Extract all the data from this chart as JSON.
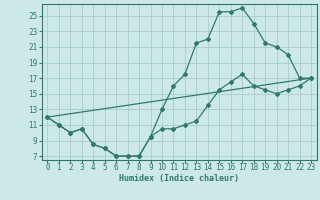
{
  "xlabel": "Humidex (Indice chaleur)",
  "bg_color": "#cce8e8",
  "grid_color": "#aacccc",
  "line_color": "#2e7b6e",
  "xlim": [
    -0.5,
    23.5
  ],
  "ylim": [
    6.5,
    26.5
  ],
  "xticks": [
    0,
    1,
    2,
    3,
    4,
    5,
    6,
    7,
    8,
    9,
    10,
    11,
    12,
    13,
    14,
    15,
    16,
    17,
    18,
    19,
    20,
    21,
    22,
    23
  ],
  "yticks": [
    7,
    9,
    11,
    13,
    15,
    17,
    19,
    21,
    23,
    25
  ],
  "line1_x": [
    0,
    1,
    2,
    3,
    4,
    5,
    6,
    7,
    8,
    9,
    10,
    11,
    12,
    13,
    14,
    15,
    16,
    17,
    18,
    19,
    20,
    21,
    22,
    23
  ],
  "line1_y": [
    12,
    11,
    10,
    10.5,
    8.5,
    8,
    7,
    7,
    7,
    9.5,
    13,
    16,
    17.5,
    21.5,
    22,
    25.5,
    25.5,
    26,
    24,
    21.5,
    21,
    20,
    17,
    17
  ],
  "line2_x": [
    0,
    1,
    2,
    3,
    4,
    5,
    6,
    7,
    8,
    9,
    10,
    11,
    12,
    13,
    14,
    15,
    16,
    17,
    18,
    19,
    20,
    21,
    22,
    23
  ],
  "line2_y": [
    12,
    11,
    10,
    10.5,
    8.5,
    8,
    7,
    7,
    7,
    9.5,
    10.5,
    10.5,
    11,
    11.5,
    13.5,
    15.5,
    16.5,
    17.5,
    16,
    15.5,
    15,
    15.5,
    16,
    17
  ],
  "line3_x": [
    0,
    23
  ],
  "line3_y": [
    12,
    17
  ]
}
